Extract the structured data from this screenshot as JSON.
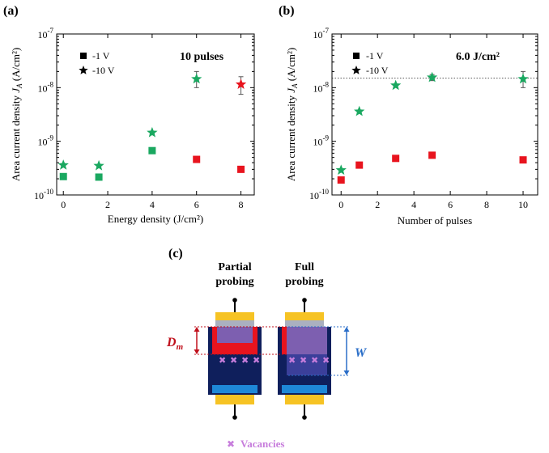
{
  "panels": {
    "a": "(a)",
    "b": "(b)",
    "c": "(c)"
  },
  "colors": {
    "green": "#1aa860",
    "red": "#e8141e",
    "gold": "#f6c324",
    "navy": "#0f1f5c",
    "purple": "#7d5fb0",
    "lightblue": "#1e88d8",
    "violet": "#c77ddc",
    "darkred": "#c0101c",
    "blue_label": "#2a6ec8"
  },
  "chart_data": [
    {
      "type": "scatter",
      "panel": "a",
      "annotation": "10 pulses",
      "xlabel": "Energy density (J/cm²)",
      "ylabel_prefix": "Area current density ",
      "ylabel_var": "J",
      "ylabel_sub": "A",
      "ylabel_suffix": " (A/cm²)",
      "yscale": "log",
      "xlim": [
        -0.3,
        8.6
      ],
      "ylim": [
        1e-10,
        1e-07
      ],
      "xticks": [
        0,
        2,
        4,
        6,
        8
      ],
      "yticks": [
        {
          "value": 1e-10,
          "base": "10",
          "exp": "-10"
        },
        {
          "value": 1e-09,
          "base": "10",
          "exp": "-9"
        },
        {
          "value": 1e-08,
          "base": "10",
          "exp": "-8"
        },
        {
          "value": 1e-07,
          "base": "10",
          "exp": "-7"
        }
      ],
      "legend": [
        {
          "marker": "square",
          "label": "-1 V"
        },
        {
          "marker": "star",
          "label": "-10 V"
        }
      ],
      "series": [
        {
          "name": "-1 V",
          "marker": "square",
          "points": [
            {
              "x": 0,
              "y": 2.2e-10,
              "color": "#1aa860"
            },
            {
              "x": 1.6,
              "y": 2.15e-10,
              "color": "#1aa860"
            },
            {
              "x": 4,
              "y": 6.7e-10,
              "color": "#1aa860"
            },
            {
              "x": 6,
              "y": 4.6e-10,
              "color": "#e8141e"
            },
            {
              "x": 8,
              "y": 3e-10,
              "color": "#e8141e"
            }
          ]
        },
        {
          "name": "-10 V",
          "marker": "star",
          "points": [
            {
              "x": 0,
              "y": 3.6e-10,
              "color": "#1aa860"
            },
            {
              "x": 1.6,
              "y": 3.5e-10,
              "color": "#1aa860"
            },
            {
              "x": 4,
              "y": 1.45e-09,
              "color": "#1aa860"
            },
            {
              "x": 6,
              "y": 1.45e-08,
              "color": "#1aa860",
              "err": [
                1e-08,
                2e-08
              ]
            },
            {
              "x": 8,
              "y": 1.15e-08,
              "color": "#e8141e",
              "err": [
                7.5e-09,
                1.6e-08
              ]
            }
          ]
        }
      ]
    },
    {
      "type": "scatter",
      "panel": "b",
      "annotation": "6.0 J/cm²",
      "xlabel": "Number of pulses",
      "ylabel_prefix": "Area current density ",
      "ylabel_var": "J",
      "ylabel_sub": "A",
      "ylabel_suffix": " (A/cm²)",
      "yscale": "log",
      "xlim": [
        -0.5,
        10.8
      ],
      "ylim": [
        1e-10,
        1e-07
      ],
      "xticks": [
        0,
        2,
        4,
        6,
        8,
        10
      ],
      "yticks": [
        {
          "value": 1e-10,
          "base": "10",
          "exp": "-10"
        },
        {
          "value": 1e-09,
          "base": "10",
          "exp": "-9"
        },
        {
          "value": 1e-08,
          "base": "10",
          "exp": "-8"
        },
        {
          "value": 1e-07,
          "base": "10",
          "exp": "-7"
        }
      ],
      "hline": 1.5e-08,
      "legend": [
        {
          "marker": "square",
          "label": "-1 V"
        },
        {
          "marker": "star",
          "label": "-10 V"
        }
      ],
      "series": [
        {
          "name": "-1 V",
          "marker": "square",
          "points": [
            {
              "x": 0,
              "y": 1.9e-10,
              "color": "#e8141e"
            },
            {
              "x": 1,
              "y": 3.6e-10,
              "color": "#e8141e"
            },
            {
              "x": 3,
              "y": 4.8e-10,
              "color": "#e8141e"
            },
            {
              "x": 5,
              "y": 5.5e-10,
              "color": "#e8141e"
            },
            {
              "x": 10,
              "y": 4.5e-10,
              "color": "#e8141e"
            }
          ]
        },
        {
          "name": "-10 V",
          "marker": "star",
          "points": [
            {
              "x": 0,
              "y": 2.9e-10,
              "color": "#1aa860"
            },
            {
              "x": 1,
              "y": 3.6e-09,
              "color": "#1aa860"
            },
            {
              "x": 3,
              "y": 1.1e-08,
              "color": "#1aa860"
            },
            {
              "x": 5,
              "y": 1.55e-08,
              "color": "#1aa860",
              "err": [
                1.35e-08,
                1.75e-08
              ]
            },
            {
              "x": 10,
              "y": 1.45e-08,
              "color": "#1aa860",
              "err": [
                1e-08,
                2e-08
              ]
            }
          ]
        }
      ]
    }
  ],
  "diagram": {
    "partial_title": [
      "Partial",
      "probing"
    ],
    "full_title": [
      "Full",
      "probing"
    ],
    "dm_label_var": "D",
    "dm_label_sub": "m",
    "w_label": "W",
    "vacancy_glyph": "✖",
    "vacancy_count": 4,
    "legend_label": "Vacancies"
  }
}
